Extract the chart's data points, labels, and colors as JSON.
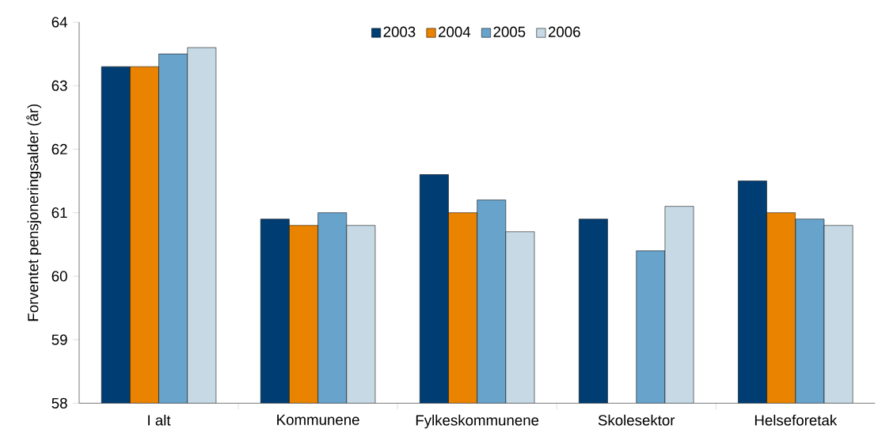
{
  "chart_data": {
    "type": "bar",
    "ylabel": "Forventet pensjoneringsalder (år)",
    "categories": [
      "I alt",
      "Kommunene",
      "Fylkeskommunene",
      "Skolesektor",
      "Helseforetak"
    ],
    "series": [
      {
        "name": "2003",
        "color": "#003d73",
        "values": [
          63.3,
          60.9,
          61.6,
          60.9,
          61.5
        ]
      },
      {
        "name": "2004",
        "color": "#e98300",
        "values": [
          63.3,
          60.8,
          61.0,
          null,
          61.0
        ]
      },
      {
        "name": "2005",
        "color": "#67a3cb",
        "values": [
          63.5,
          61.0,
          61.2,
          60.4,
          60.9
        ]
      },
      {
        "name": "2006",
        "color": "#c6d9e5",
        "values": [
          63.6,
          60.8,
          60.7,
          61.1,
          60.8
        ]
      }
    ],
    "ylim": [
      58,
      64
    ],
    "yticks": [
      58,
      59,
      60,
      61,
      62,
      63,
      64
    ],
    "grid": false,
    "legend": "top"
  }
}
